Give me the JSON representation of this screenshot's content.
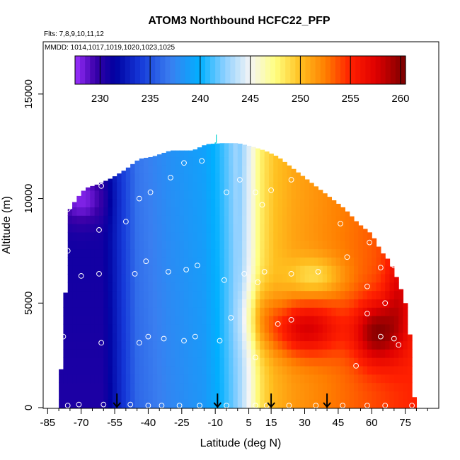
{
  "chart_data": {
    "type": "heatmap",
    "title": "ATOM3 Northbound HCFC22_PFP",
    "flights_label": "Flts: 7,8,9,10,11,12",
    "dates_label": "MMDD: 1014,1017,1019,1020,1023,1025",
    "xlabel": "Latitude (deg N)",
    "ylabel": "Altitude (m)",
    "xlim": [
      -87,
      90
    ],
    "ylim": [
      0,
      17500
    ],
    "x_ticks": [
      -85,
      -70,
      -55,
      -40,
      -25,
      -10,
      5,
      15,
      30,
      45,
      60,
      75
    ],
    "x_minor_ticks": [
      -80,
      -75,
      -65,
      -60,
      -50,
      -45,
      -35,
      -30,
      -20,
      -15,
      -5,
      0,
      10,
      20,
      25,
      35,
      40,
      50,
      55,
      65,
      70,
      80,
      85
    ],
    "y_ticks": [
      0,
      5000,
      10000,
      15000
    ],
    "colorbar": {
      "range": [
        227.5,
        260.5
      ],
      "ticks": [
        230,
        235,
        240,
        245,
        250,
        255,
        260
      ],
      "stops": [
        {
          "v": 227.5,
          "c": "#9b30ff"
        },
        {
          "v": 229.5,
          "c": "#3a00a8"
        },
        {
          "v": 231.5,
          "c": "#0000a0"
        },
        {
          "v": 234.0,
          "c": "#1538d8"
        },
        {
          "v": 237.0,
          "c": "#3a7ef0"
        },
        {
          "v": 240.0,
          "c": "#00b0ff"
        },
        {
          "v": 242.5,
          "c": "#8fd0ff"
        },
        {
          "v": 245.0,
          "c": "#f5f5f5"
        },
        {
          "v": 247.5,
          "c": "#ffff80"
        },
        {
          "v": 250.0,
          "c": "#ffc020"
        },
        {
          "v": 252.5,
          "c": "#ff7e00"
        },
        {
          "v": 255.0,
          "c": "#ff2000"
        },
        {
          "v": 257.5,
          "c": "#e00000"
        },
        {
          "v": 260.5,
          "c": "#780000"
        }
      ]
    },
    "coverage_upper_altitude_m": [
      [
        -80,
        0
      ],
      [
        -77,
        5500
      ],
      [
        -76,
        8000
      ],
      [
        -75,
        9500
      ],
      [
        -72,
        10000
      ],
      [
        -68,
        10500
      ],
      [
        -62,
        10700
      ],
      [
        -56,
        11000
      ],
      [
        -50,
        11400
      ],
      [
        -44,
        11900
      ],
      [
        -38,
        12000
      ],
      [
        -30,
        12300
      ],
      [
        -20,
        12300
      ],
      [
        -14,
        12600
      ],
      [
        -7,
        12650
      ],
      [
        0,
        12650
      ],
      [
        6,
        12500
      ],
      [
        12,
        12300
      ],
      [
        18,
        12000
      ],
      [
        24,
        11500
      ],
      [
        30,
        11000
      ],
      [
        36,
        10500
      ],
      [
        42,
        10000
      ],
      [
        48,
        9500
      ],
      [
        54,
        8800
      ],
      [
        60,
        8300
      ],
      [
        64,
        7500
      ],
      [
        68,
        7000
      ],
      [
        72,
        6000
      ],
      [
        75,
        5000
      ],
      [
        77,
        3500
      ],
      [
        78,
        2000
      ],
      [
        79,
        500
      ],
      [
        79.5,
        0
      ]
    ],
    "field_anchors": [
      [
        -60,
        230.5
      ],
      [
        -45,
        236
      ],
      [
        -30,
        237.5
      ],
      [
        -15,
        238.5
      ],
      [
        -8,
        240
      ],
      [
        -3,
        241.5
      ],
      [
        0,
        242.5
      ],
      [
        3,
        244
      ],
      [
        6,
        245.5
      ],
      [
        8,
        247
      ],
      [
        10,
        248.5
      ],
      [
        13,
        249.5
      ],
      [
        17,
        250.5
      ],
      [
        25,
        251.5
      ],
      [
        40,
        252.5
      ],
      [
        55,
        253.5
      ],
      [
        70,
        254.5
      ],
      [
        79,
        255
      ]
    ],
    "anomalies": [
      {
        "lat": 30,
        "alt": 3800,
        "rlat": 16,
        "ralt": 1300,
        "dv": 6
      },
      {
        "lat": 62,
        "alt": 3600,
        "rlat": 10,
        "ralt": 1500,
        "dv": 6
      },
      {
        "lat": 72,
        "alt": 5500,
        "rlat": 6,
        "ralt": 2500,
        "dv": 3
      },
      {
        "lat": 35,
        "alt": 6300,
        "rlat": 12,
        "ralt": 900,
        "dv": -3
      },
      {
        "lat": -70,
        "alt": 10000,
        "rlat": 10,
        "ralt": 1200,
        "dv": -3
      },
      {
        "lat": 10,
        "alt": 4500,
        "rlat": 8,
        "ralt": 1500,
        "dv": 2
      }
    ],
    "samples": [
      {
        "lat": -76,
        "alt": 100
      },
      {
        "lat": -71,
        "alt": 150
      },
      {
        "lat": -60,
        "alt": 150
      },
      {
        "lat": -48,
        "alt": 150
      },
      {
        "lat": -40,
        "alt": 100
      },
      {
        "lat": -34,
        "alt": 100
      },
      {
        "lat": -26,
        "alt": 100
      },
      {
        "lat": -17,
        "alt": 100
      },
      {
        "lat": -5,
        "alt": 100
      },
      {
        "lat": 8,
        "alt": 100
      },
      {
        "lat": 13,
        "alt": 100
      },
      {
        "lat": 23,
        "alt": 100
      },
      {
        "lat": 35,
        "alt": 100
      },
      {
        "lat": 47,
        "alt": 100
      },
      {
        "lat": 58,
        "alt": 100
      },
      {
        "lat": 66,
        "alt": 100
      },
      {
        "lat": 78,
        "alt": 100
      },
      {
        "lat": -78,
        "alt": 3400
      },
      {
        "lat": -61,
        "alt": 3100
      },
      {
        "lat": -44,
        "alt": 3100
      },
      {
        "lat": -40,
        "alt": 3400
      },
      {
        "lat": -33,
        "alt": 3300
      },
      {
        "lat": -24,
        "alt": 3200
      },
      {
        "lat": -19,
        "alt": 3400
      },
      {
        "lat": -8,
        "alt": 3200
      },
      {
        "lat": -3,
        "alt": 4300
      },
      {
        "lat": 8,
        "alt": 2400
      },
      {
        "lat": 18,
        "alt": 4000
      },
      {
        "lat": 24,
        "alt": 4200
      },
      {
        "lat": 53,
        "alt": 2000
      },
      {
        "lat": 64,
        "alt": 3400
      },
      {
        "lat": 70,
        "alt": 3300
      },
      {
        "lat": 72,
        "alt": 3000
      },
      {
        "lat": -80,
        "alt": 5400
      },
      {
        "lat": -70,
        "alt": 6300
      },
      {
        "lat": -62,
        "alt": 6400
      },
      {
        "lat": -46,
        "alt": 6400
      },
      {
        "lat": -41,
        "alt": 7000
      },
      {
        "lat": -31,
        "alt": 6500
      },
      {
        "lat": -23,
        "alt": 6600
      },
      {
        "lat": -18,
        "alt": 6800
      },
      {
        "lat": -6,
        "alt": 6100
      },
      {
        "lat": 3,
        "alt": 6400
      },
      {
        "lat": 9,
        "alt": 6000
      },
      {
        "lat": 12,
        "alt": 6500
      },
      {
        "lat": 24,
        "alt": 6400
      },
      {
        "lat": 36,
        "alt": 6500
      },
      {
        "lat": 49,
        "alt": 7200
      },
      {
        "lat": 58,
        "alt": 5800
      },
      {
        "lat": 64,
        "alt": 6700
      },
      {
        "lat": 70,
        "alt": 6800
      },
      {
        "lat": 73,
        "alt": 6500
      },
      {
        "lat": 66,
        "alt": 5000
      },
      {
        "lat": 58,
        "alt": 4500
      },
      {
        "lat": -76,
        "alt": 7500
      },
      {
        "lat": -76,
        "alt": 9500
      },
      {
        "lat": -62,
        "alt": 8500
      },
      {
        "lat": -50,
        "alt": 8900
      },
      {
        "lat": -44,
        "alt": 10000
      },
      {
        "lat": -39,
        "alt": 10300
      },
      {
        "lat": -30,
        "alt": 11000
      },
      {
        "lat": -24,
        "alt": 11700
      },
      {
        "lat": -16,
        "alt": 11800
      },
      {
        "lat": -5,
        "alt": 10300
      },
      {
        "lat": 1,
        "alt": 10900
      },
      {
        "lat": 8,
        "alt": 10300
      },
      {
        "lat": 11,
        "alt": 9700
      },
      {
        "lat": 15,
        "alt": 10400
      },
      {
        "lat": 24,
        "alt": 10900
      },
      {
        "lat": 46,
        "alt": 8800
      },
      {
        "lat": 59,
        "alt": 7900
      },
      {
        "lat": -61,
        "alt": 10600
      }
    ],
    "arrows_lat": [
      -54,
      -9,
      15,
      40
    ],
    "marker_top": {
      "lat": -10,
      "alt": 12650
    }
  }
}
